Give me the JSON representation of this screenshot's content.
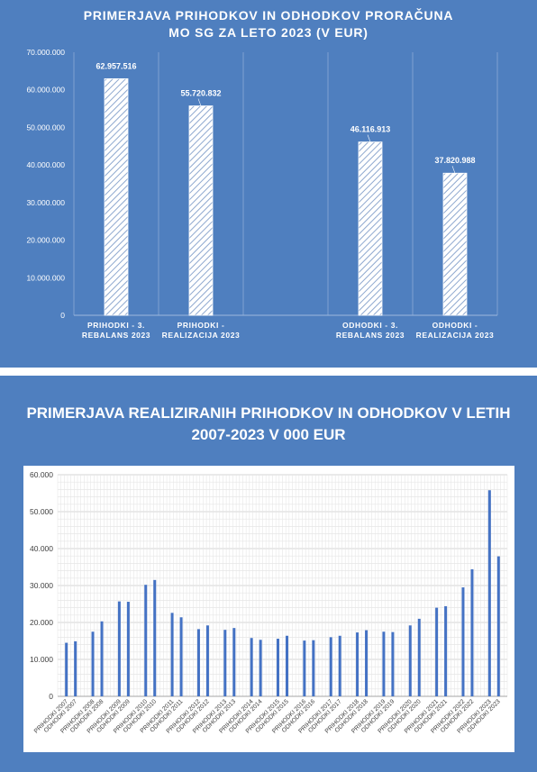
{
  "chart_data": [
    {
      "type": "bar",
      "title_lines": [
        "PRIMERJAVA PRIHODKOV IN ODHODKOV PRORAČUNA",
        "MO SG ZA LETO 2023 (V EUR)"
      ],
      "categories": [
        [
          "PRIHODKI - 3.",
          "REBALANS 2023"
        ],
        [
          "PRIHODKI -",
          "REALIZACIJA 2023"
        ],
        [
          "",
          ""
        ],
        [
          "ODHODKI  - 3.",
          "REBALANS 2023"
        ],
        [
          "ODHODKI -",
          "REALIZACIJA 2023"
        ]
      ],
      "values": [
        62957516,
        55720832,
        null,
        46116913,
        37820988
      ],
      "data_labels": [
        "62.957.516",
        "55.720.832",
        "",
        "46.116.913",
        "37.820.988"
      ],
      "yticks": [
        "0",
        "10.000.000",
        "20.000.000",
        "30.000.000",
        "40.000.000",
        "50.000.000",
        "60.000.000",
        "70.000.000"
      ],
      "ylim": [
        0,
        70000000
      ],
      "grid": "vertical-category-separators",
      "colors": {
        "background": "#4f7fbf",
        "bar": "#ffffff",
        "hatch": "#8ea8cf",
        "text": "#ffffff"
      }
    },
    {
      "type": "bar",
      "title_lines": [
        "PRIMERJAVA REALIZIRANIH PRIHODKOV IN ODHODKOV V LETIH",
        "2007-2023 V 000 EUR"
      ],
      "categories": [
        "PRIHODKI 2007",
        "ODHODKI 2007",
        "PRIHODKI 2008",
        "ODHODKI 2008",
        "PRIHODKI 2009",
        "ODHODKI 2009",
        "PRIHODKI 2010",
        "ODHODKI 2010",
        "PRIHODKI 2011",
        "ODHODKI 2011",
        "PRIHODKI 2012",
        "ODHODKI 2012",
        "PRIHODKI 2013",
        "ODHODKI 2013",
        "PRIHODKI 2014",
        "ODHODKI 2014",
        "PRIHODKI 2015",
        "ODHODKI 2015",
        "PRIHODKI 2016",
        "ODHODKI 2016",
        "PRIHODKI 2017",
        "ODHODKI 2017",
        "PRIHODKI 2018",
        "ODHODKI 2018",
        "PRIHODKI 2019",
        "ODHODKI 2019",
        "PRIHODKI 2020",
        "ODHODKI 2020",
        "PRIHODKI 2021",
        "ODHODKI 2021",
        "PRIHODKI 2022",
        "ODHODKI 2022",
        "PRIHODKI 2023",
        "ODHODKI 2023"
      ],
      "values": [
        14500,
        14900,
        17500,
        20300,
        25700,
        25600,
        30200,
        31500,
        22600,
        21400,
        18200,
        19200,
        18000,
        18500,
        15800,
        15300,
        15600,
        16400,
        15100,
        15200,
        16000,
        16400,
        17300,
        17900,
        17500,
        17400,
        19200,
        21000,
        24000,
        24400,
        29500,
        34400,
        55800,
        37900
      ],
      "yticks": [
        "0",
        "10.000",
        "20.000",
        "30.000",
        "40.000",
        "50.000",
        "60.000"
      ],
      "ylim": [
        0,
        60000
      ],
      "grid": "both",
      "colors": {
        "background": "#4f7fbf",
        "plot": "#ffffff",
        "bar": "#4472c4",
        "grid": "#d9d9d9",
        "text": "#404040"
      }
    }
  ]
}
